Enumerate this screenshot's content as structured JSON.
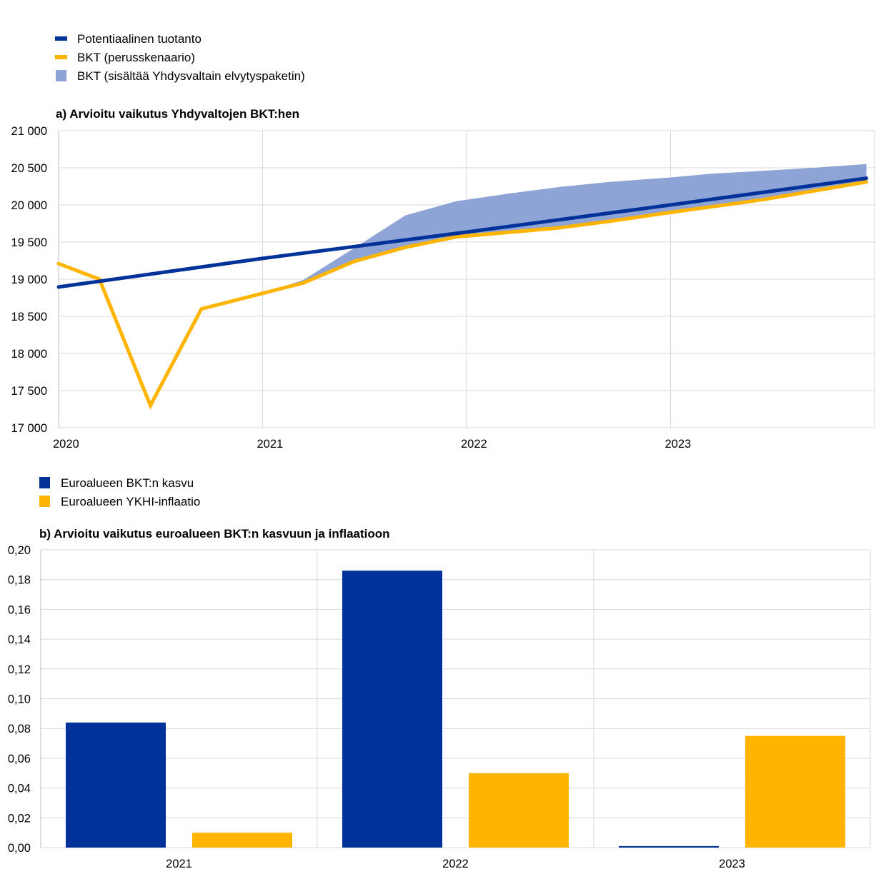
{
  "chart_data": [
    {
      "type": "line",
      "title": "a) Arvioitu vaikutus Yhdyvaltojen BKT:hen",
      "legend_position": "top-left",
      "legend": [
        {
          "label": "Potentiaalinen tuotanto",
          "color": "#003299",
          "kind": "line"
        },
        {
          "label": "BKT (perusskenaario)",
          "color": "#FFB400",
          "kind": "line"
        },
        {
          "label": "BKT (sisältää Yhdysvaltain elvytyspaketin)",
          "color": "#8FA4D6",
          "kind": "area"
        }
      ],
      "xlim": [
        2020.0,
        2024.0
      ],
      "x_ticks": [
        {
          "value": 2020,
          "label": "2020"
        },
        {
          "value": 2021,
          "label": "2021"
        },
        {
          "value": 2022,
          "label": "2022"
        },
        {
          "value": 2023,
          "label": "2023"
        }
      ],
      "ylim": [
        17000,
        21000
      ],
      "y_ticks": [
        {
          "value": 17000,
          "label": "17 000"
        },
        {
          "value": 17500,
          "label": "17 500"
        },
        {
          "value": 18000,
          "label": "18 000"
        },
        {
          "value": 18500,
          "label": "18 500"
        },
        {
          "value": 19000,
          "label": "19 000"
        },
        {
          "value": 19500,
          "label": "19 500"
        },
        {
          "value": 20000,
          "label": "20 000"
        },
        {
          "value": 20500,
          "label": "20 500"
        },
        {
          "value": 21000,
          "label": "21 000"
        }
      ],
      "grid": true,
      "series": [
        {
          "name": "Potentiaalinen tuotanto",
          "color": "#003299",
          "x": [
            2020.0,
            2021.0,
            2022.0,
            2023.0,
            2023.96
          ],
          "values": [
            18895,
            19280,
            19635,
            20000,
            20360
          ]
        },
        {
          "name": "BKT (perusskenaario)",
          "color": "#FFB400",
          "x": [
            2020.0,
            2020.2,
            2020.45,
            2020.7,
            2021.0,
            2021.2,
            2021.45,
            2021.7,
            2021.95,
            2022.45,
            2022.7,
            2023.0,
            2023.45,
            2023.96
          ],
          "values": [
            19210,
            19000,
            17300,
            18600,
            18810,
            18950,
            19240,
            19430,
            19570,
            19690,
            19780,
            19900,
            20070,
            20310
          ]
        },
        {
          "name": "BKT (sisältää Yhdysvaltain elvytyspaketin)",
          "color": "#8FA4D6",
          "kind": "band",
          "x": [
            2021.0,
            2021.2,
            2021.45,
            2021.7,
            2021.95,
            2022.2,
            2022.45,
            2022.7,
            2023.0,
            2023.2,
            2023.45,
            2023.7,
            2023.96
          ],
          "upper": [
            18810,
            18990,
            19420,
            19860,
            20050,
            20150,
            20240,
            20310,
            20370,
            20420,
            20460,
            20500,
            20550
          ],
          "lower": [
            18810,
            18950,
            19240,
            19430,
            19570,
            19630,
            19690,
            19780,
            19900,
            19980,
            20070,
            20180,
            20310
          ]
        }
      ]
    },
    {
      "type": "bar",
      "title": "b) Arvioitu vaikutus euroalueen BKT:n kasvuun ja inflaatioon",
      "legend_position": "top-left",
      "categories": [
        "2021",
        "2022",
        "2023"
      ],
      "ylim": [
        0,
        0.2
      ],
      "y_ticks": [
        {
          "value": 0,
          "label": "0,00"
        },
        {
          "value": 0.02,
          "label": "0,02"
        },
        {
          "value": 0.04,
          "label": "0,04"
        },
        {
          "value": 0.06,
          "label": "0,06"
        },
        {
          "value": 0.08,
          "label": "0,08"
        },
        {
          "value": 0.1,
          "label": "0,10"
        },
        {
          "value": 0.12,
          "label": "0,12"
        },
        {
          "value": 0.14,
          "label": "0,14"
        },
        {
          "value": 0.16,
          "label": "0,16"
        },
        {
          "value": 0.18,
          "label": "0,18"
        },
        {
          "value": 0.2,
          "label": "0,20"
        }
      ],
      "grid": true,
      "series": [
        {
          "name": "Euroalueen BKT:n kasvu",
          "color": "#003299",
          "values": [
            0.084,
            0.186,
            0.001
          ]
        },
        {
          "name": "Euroalueen YKHI-inflaatio",
          "color": "#FFB400",
          "values": [
            0.01,
            0.05,
            0.075
          ]
        }
      ]
    }
  ]
}
